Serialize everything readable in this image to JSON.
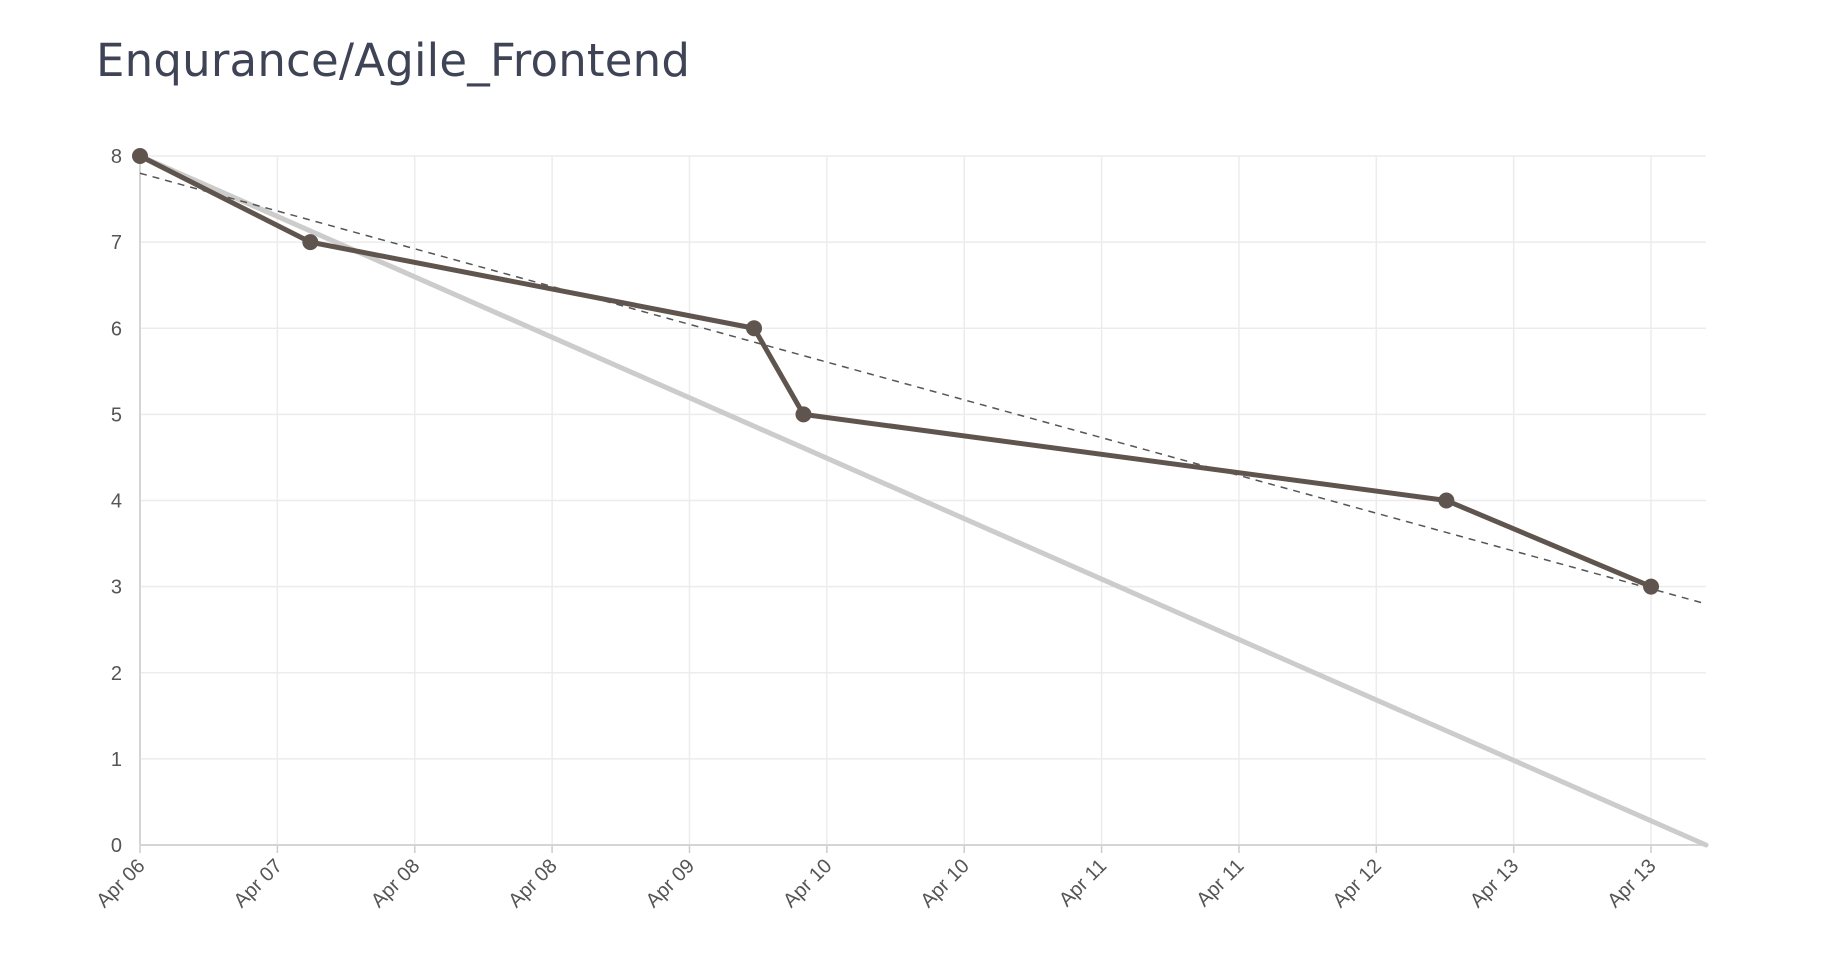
{
  "page": {
    "title": "Enqurance/Agile_Frontend"
  },
  "chart_data": {
    "type": "line",
    "title": "Enqurance/Agile_Frontend",
    "xlabel": "",
    "ylabel": "",
    "x_tick_labels": [
      "Apr 06",
      "Apr 07",
      "Apr 08",
      "Apr 08",
      "Apr 09",
      "Apr 10",
      "Apr 10",
      "Apr 11",
      "Apr 11",
      "Apr 12",
      "Apr 13",
      "Apr 13"
    ],
    "y_ticks": [
      0,
      1,
      2,
      3,
      4,
      5,
      6,
      7,
      8
    ],
    "xlim": [
      0,
      11.4
    ],
    "ylim": [
      0,
      8
    ],
    "grid": true,
    "legend": "none",
    "series": [
      {
        "role": "ideal",
        "style": "solid-thick",
        "color": "#cccccc",
        "x": [
          0,
          11.4
        ],
        "y": [
          8,
          0
        ]
      },
      {
        "role": "actual",
        "style": "solid-markers",
        "color": "#5f554e",
        "x": [
          0,
          1.24,
          4.47,
          4.83,
          9.51,
          11.0
        ],
        "y": [
          8,
          7,
          6,
          5,
          4,
          3
        ]
      },
      {
        "role": "trend",
        "style": "dashed",
        "color": "#555555",
        "x": [
          0,
          11.4
        ],
        "y": [
          7.8,
          2.8
        ]
      }
    ]
  }
}
